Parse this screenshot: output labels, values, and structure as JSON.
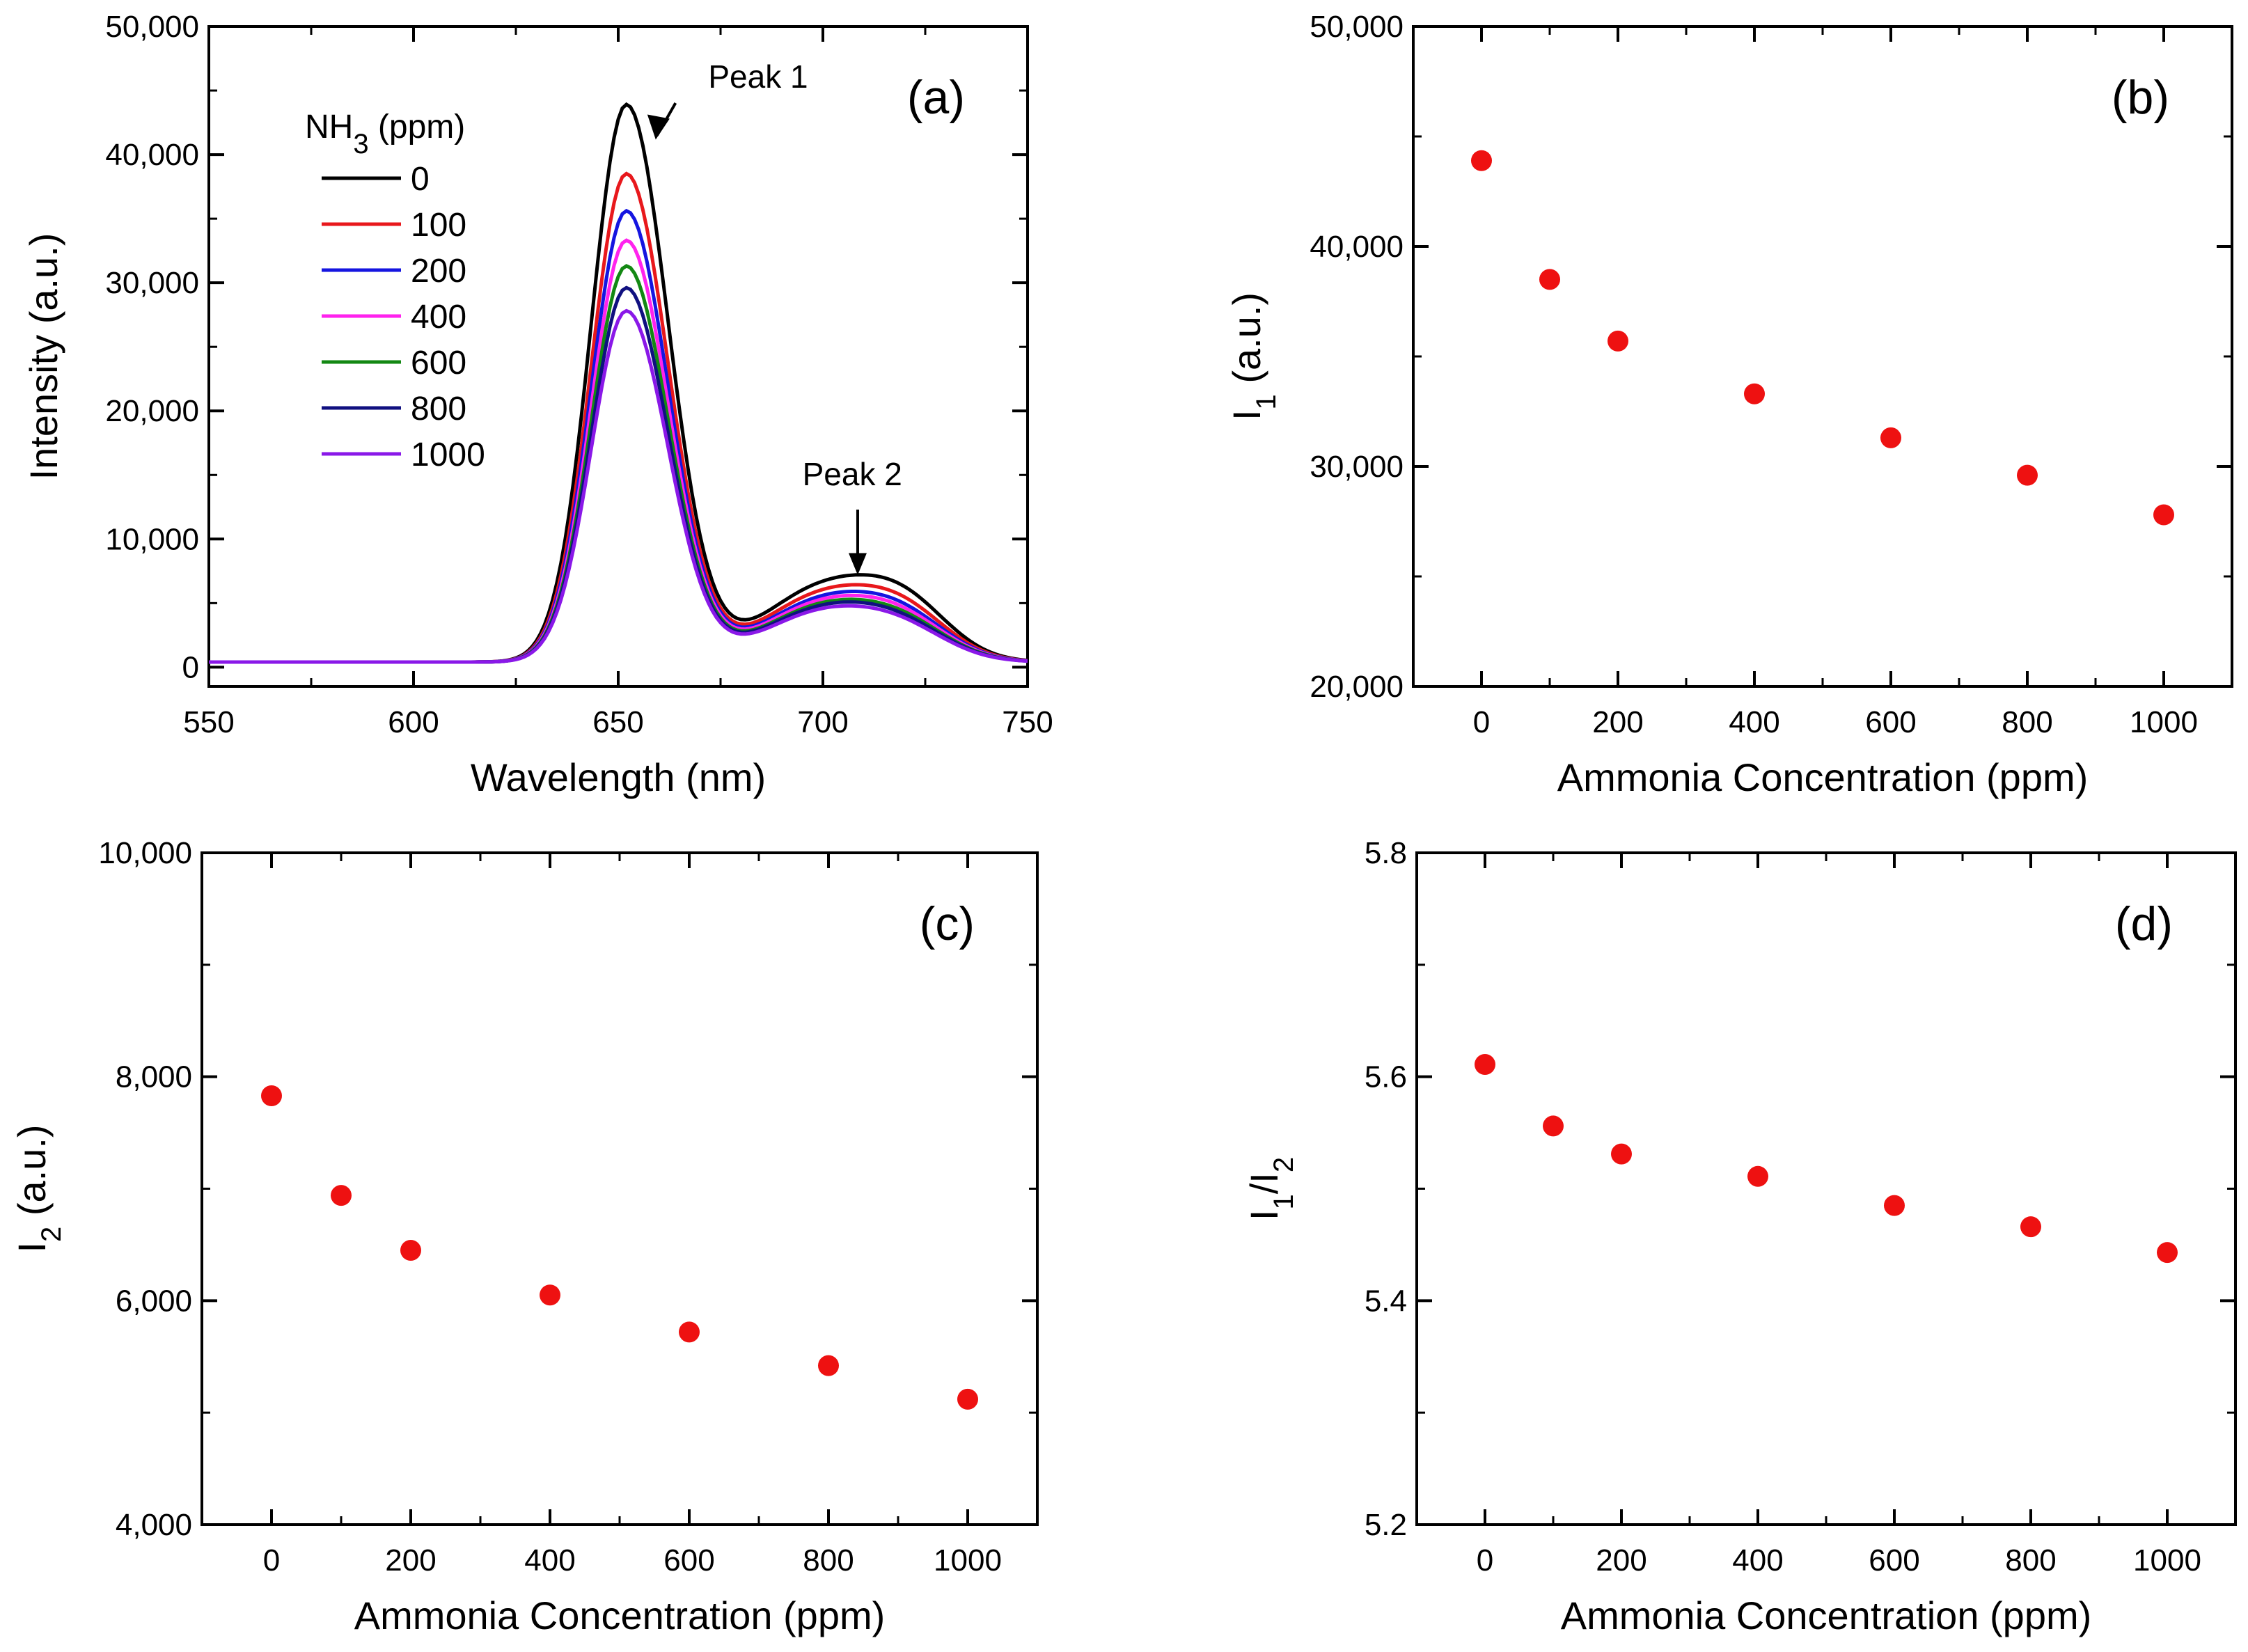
{
  "chart_data": [
    {
      "panel": "a",
      "type": "line",
      "panel_label": "(a)",
      "xlabel": "Wavelength (nm)",
      "ylabel": "Intensity (a.u.)",
      "xlim": [
        550,
        750
      ],
      "ylim": [
        -1500,
        50000
      ],
      "xticks": [
        550,
        600,
        650,
        700,
        750
      ],
      "xtick_labels": [
        "550",
        "600",
        "650",
        "700",
        "750"
      ],
      "yticks": [
        0,
        10000,
        20000,
        30000,
        40000,
        50000
      ],
      "ytick_labels": [
        "0",
        "10,000",
        "20,000",
        "30,000",
        "40,000",
        "50,000"
      ],
      "legend_title_main": "NH",
      "legend_title_sub": "3",
      "legend_title_rest": " (ppm)",
      "legend_position": "top-left",
      "annotations": [
        {
          "text": "Peak 1"
        },
        {
          "text": "Peak 2"
        }
      ],
      "series": [
        {
          "name": "0",
          "color": "#000000",
          "peak1": 43900,
          "peak2": 7000
        },
        {
          "name": "100",
          "color": "#e8181c",
          "peak1": 38500,
          "peak2": 6300
        },
        {
          "name": "200",
          "color": "#1515e0",
          "peak1": 35600,
          "peak2": 5800
        },
        {
          "name": "400",
          "color": "#ff22ee",
          "peak1": 33300,
          "peak2": 5500
        },
        {
          "name": "600",
          "color": "#138813",
          "peak1": 31300,
          "peak2": 5200
        },
        {
          "name": "800",
          "color": "#101080",
          "peak1": 29600,
          "peak2": 5000
        },
        {
          "name": "1000",
          "color": "#8a18e8",
          "peak1": 27800,
          "peak2": 4700
        }
      ],
      "baseline": 400,
      "end_value": 1500
    },
    {
      "panel": "b",
      "type": "scatter",
      "panel_label": "(b)",
      "xlabel": "Ammonia Concentration (ppm)",
      "ylabel_main": "I",
      "ylabel_sub": "1",
      "ylabel_rest": " (a.u.)",
      "xlim": [
        -100,
        1100
      ],
      "ylim": [
        20000,
        50000
      ],
      "xticks": [
        0,
        200,
        400,
        600,
        800,
        1000
      ],
      "xtick_labels": [
        "0",
        "200",
        "400",
        "600",
        "800",
        "1000"
      ],
      "yticks": [
        20000,
        30000,
        40000,
        50000
      ],
      "ytick_labels": [
        "20,000",
        "30,000",
        "40,000",
        "50,000"
      ],
      "x": [
        0,
        100,
        200,
        400,
        600,
        800,
        1000
      ],
      "y": [
        43900,
        38500,
        35700,
        33300,
        31300,
        29600,
        27800
      ],
      "color": "#ee1111"
    },
    {
      "panel": "c",
      "type": "scatter",
      "panel_label": "(c)",
      "xlabel": "Ammonia Concentration (ppm)",
      "ylabel_main": "I",
      "ylabel_sub": "2",
      "ylabel_rest": " (a.u.)",
      "xlim": [
        -100,
        1100
      ],
      "ylim": [
        4000,
        10000
      ],
      "xticks": [
        0,
        200,
        400,
        600,
        800,
        1000
      ],
      "xtick_labels": [
        "0",
        "200",
        "400",
        "600",
        "800",
        "1000"
      ],
      "yticks": [
        4000,
        6000,
        8000,
        10000
      ],
      "ytick_labels": [
        "4,000",
        "6,000",
        "8,000",
        "10,000"
      ],
      "x": [
        0,
        100,
        200,
        400,
        600,
        800,
        1000
      ],
      "y": [
        7830,
        6940,
        6450,
        6050,
        5720,
        5420,
        5120
      ],
      "color": "#ee1111"
    },
    {
      "panel": "d",
      "type": "scatter",
      "panel_label": "(d)",
      "xlabel": "Ammonia Concentration (ppm)",
      "ylabel_parts": [
        "I",
        "1",
        "/I",
        "2"
      ],
      "xlim": [
        -100,
        1100
      ],
      "ylim": [
        5.2,
        5.8
      ],
      "xticks": [
        0,
        200,
        400,
        600,
        800,
        1000
      ],
      "xtick_labels": [
        "0",
        "200",
        "400",
        "600",
        "800",
        "1000"
      ],
      "yticks": [
        5.2,
        5.4,
        5.6,
        5.8
      ],
      "ytick_labels": [
        "5.2",
        "5.4",
        "5.6",
        "5.8"
      ],
      "x": [
        0,
        100,
        200,
        400,
        600,
        800,
        1000
      ],
      "y": [
        5.611,
        5.556,
        5.531,
        5.511,
        5.485,
        5.466,
        5.443
      ],
      "color": "#ee1111"
    }
  ]
}
